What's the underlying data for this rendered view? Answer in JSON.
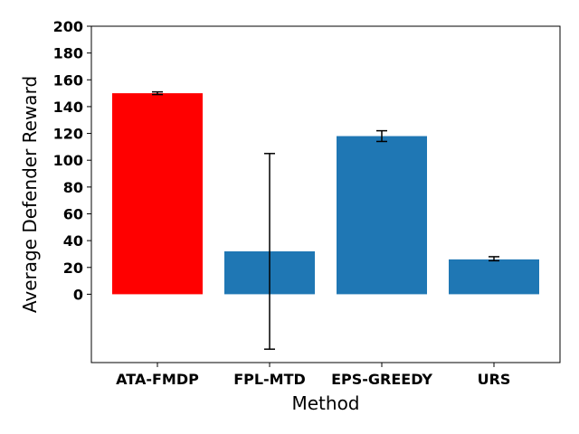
{
  "chart_data": {
    "type": "bar",
    "categories": [
      "ATA-FMDP",
      "FPL-MTD",
      "EPS-GREEDY",
      "URS"
    ],
    "values": [
      150,
      32,
      118,
      26
    ],
    "error_low": [
      149,
      -41,
      114,
      25
    ],
    "error_high": [
      151,
      105,
      122,
      28
    ],
    "bar_colors": [
      "#ff0000",
      "#1f77b4",
      "#1f77b4",
      "#1f77b4"
    ],
    "xlabel": "Method",
    "ylabel": "Average Defender Reward",
    "ylim": [
      -51,
      200
    ],
    "yticks": [
      0,
      20,
      40,
      60,
      80,
      100,
      120,
      140,
      160,
      180,
      200
    ],
    "grid": false
  }
}
